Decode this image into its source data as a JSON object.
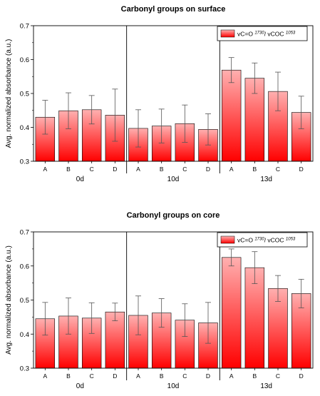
{
  "chart_data": [
    {
      "type": "bar",
      "title": "Carbonyl groups on surface",
      "ylabel": "Avg. normalized absorbance (a.u.)",
      "ylim": [
        0.3,
        0.7
      ],
      "yticks": [
        "0.3",
        "0.4",
        "0.5",
        "0.6",
        "0.7"
      ],
      "grid": false,
      "legend_position": "top-right",
      "legend": {
        "base": "vC=O ",
        "sup1": "1730",
        "mid": "/ vCOC ",
        "sup2": "1053"
      },
      "categories": [
        "A",
        "B",
        "C",
        "D",
        "A",
        "B",
        "C",
        "D",
        "A",
        "B",
        "C",
        "D"
      ],
      "groups": [
        "0d",
        "10d",
        "13d"
      ],
      "values": [
        0.43,
        0.449,
        0.452,
        0.436,
        0.397,
        0.404,
        0.411,
        0.394,
        0.569,
        0.545,
        0.506,
        0.444
      ],
      "errors": [
        0.05,
        0.053,
        0.042,
        0.077,
        0.055,
        0.05,
        0.055,
        0.046,
        0.037,
        0.045,
        0.057,
        0.048
      ],
      "colors": {
        "bar_top": "#ffb0b0",
        "bar_bottom": "#ff0000",
        "edge": "#000000"
      }
    },
    {
      "type": "bar",
      "title": "Carbonyl groups on core",
      "ylabel": "Avg. normalized absorbance (a.u.)",
      "ylim": [
        0.3,
        0.7
      ],
      "yticks": [
        "0.3",
        "0.4",
        "0.5",
        "0.6",
        "0.7"
      ],
      "grid": false,
      "legend_position": "top-right",
      "legend": {
        "base": "vC=O ",
        "sup1": "1730",
        "mid": "/ vCOC ",
        "sup2": "1053"
      },
      "categories": [
        "A",
        "B",
        "C",
        "D",
        "A",
        "B",
        "C",
        "D",
        "A",
        "B",
        "C",
        "D"
      ],
      "groups": [
        "0d",
        "10d",
        "13d"
      ],
      "values": [
        0.445,
        0.453,
        0.447,
        0.465,
        0.455,
        0.462,
        0.441,
        0.433,
        0.625,
        0.595,
        0.534,
        0.519
      ],
      "errors": [
        0.048,
        0.053,
        0.045,
        0.026,
        0.057,
        0.042,
        0.048,
        0.06,
        0.025,
        0.047,
        0.038,
        0.042
      ],
      "colors": {
        "bar_top": "#ffb0b0",
        "bar_bottom": "#ff0000",
        "edge": "#000000"
      }
    }
  ]
}
